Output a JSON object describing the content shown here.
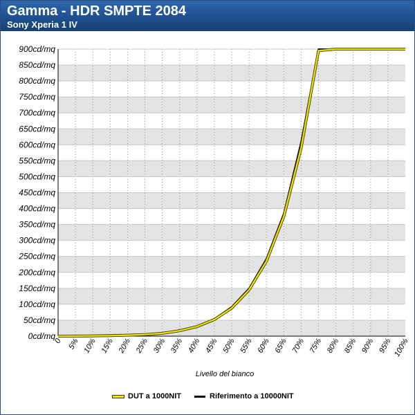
{
  "header": {
    "title": "Gamma - HDR SMPTE 2084",
    "subtitle": "Sony Xperia 1 IV"
  },
  "colors": {
    "header_bg": "#1f4f8f",
    "band": "#e3e3e3",
    "dut_line": "#f2e600",
    "ref_line": "#000000"
  },
  "chart_data": {
    "type": "line",
    "title": "Gamma - HDR SMPTE 2084",
    "subtitle": "Sony Xperia 1 IV",
    "xlabel": "Livello del bianco",
    "ylabel": "",
    "x": [
      0,
      5,
      10,
      15,
      20,
      25,
      30,
      35,
      40,
      45,
      50,
      55,
      60,
      65,
      70,
      75,
      80,
      85,
      90,
      95,
      100
    ],
    "x_tick_labels": [
      "0",
      "5%",
      "10%",
      "15%",
      "20%",
      "25%",
      "30%",
      "35%",
      "40%",
      "45%",
      "50%",
      "55%",
      "60%",
      "65%",
      "70%",
      "75%",
      "80%",
      "85%",
      "90%",
      "95%",
      "100%"
    ],
    "y_ticks": [
      0,
      50,
      100,
      150,
      200,
      250,
      300,
      350,
      400,
      450,
      500,
      550,
      600,
      650,
      700,
      750,
      800,
      850,
      900
    ],
    "y_tick_labels": [
      "0cd/mq",
      "50cd/mq",
      "100cd/mq",
      "150cd/mq",
      "200cd/mq",
      "250cd/mq",
      "300cd/mq",
      "350cd/mq",
      "400cd/mq",
      "450cd/mq",
      "500cd/mq",
      "550cd/mq",
      "600cd/mq",
      "650cd/mq",
      "700cd/mq",
      "750cd/mq",
      "800cd/mq",
      "850cd/mq",
      "900cd/mq"
    ],
    "xlim": [
      0,
      100
    ],
    "ylim": [
      0,
      900
    ],
    "grid": true,
    "legend_position": "bottom",
    "series": [
      {
        "name": "DUT a 1000NIT",
        "color": "#f2e600",
        "values": [
          0,
          0.3,
          0.8,
          1.5,
          3,
          5,
          9,
          17,
          30,
          52,
          88,
          145,
          235,
          375,
          590,
          895,
          900,
          900,
          900,
          900,
          900
        ]
      },
      {
        "name": "Riferimento a 10000NIT",
        "color": "#000000",
        "values": [
          0,
          0.3,
          0.9,
          1.6,
          3,
          5.5,
          10,
          18,
          31,
          54,
          92,
          150,
          243,
          385,
          610,
          900,
          900,
          900,
          900,
          900,
          900
        ]
      }
    ]
  }
}
